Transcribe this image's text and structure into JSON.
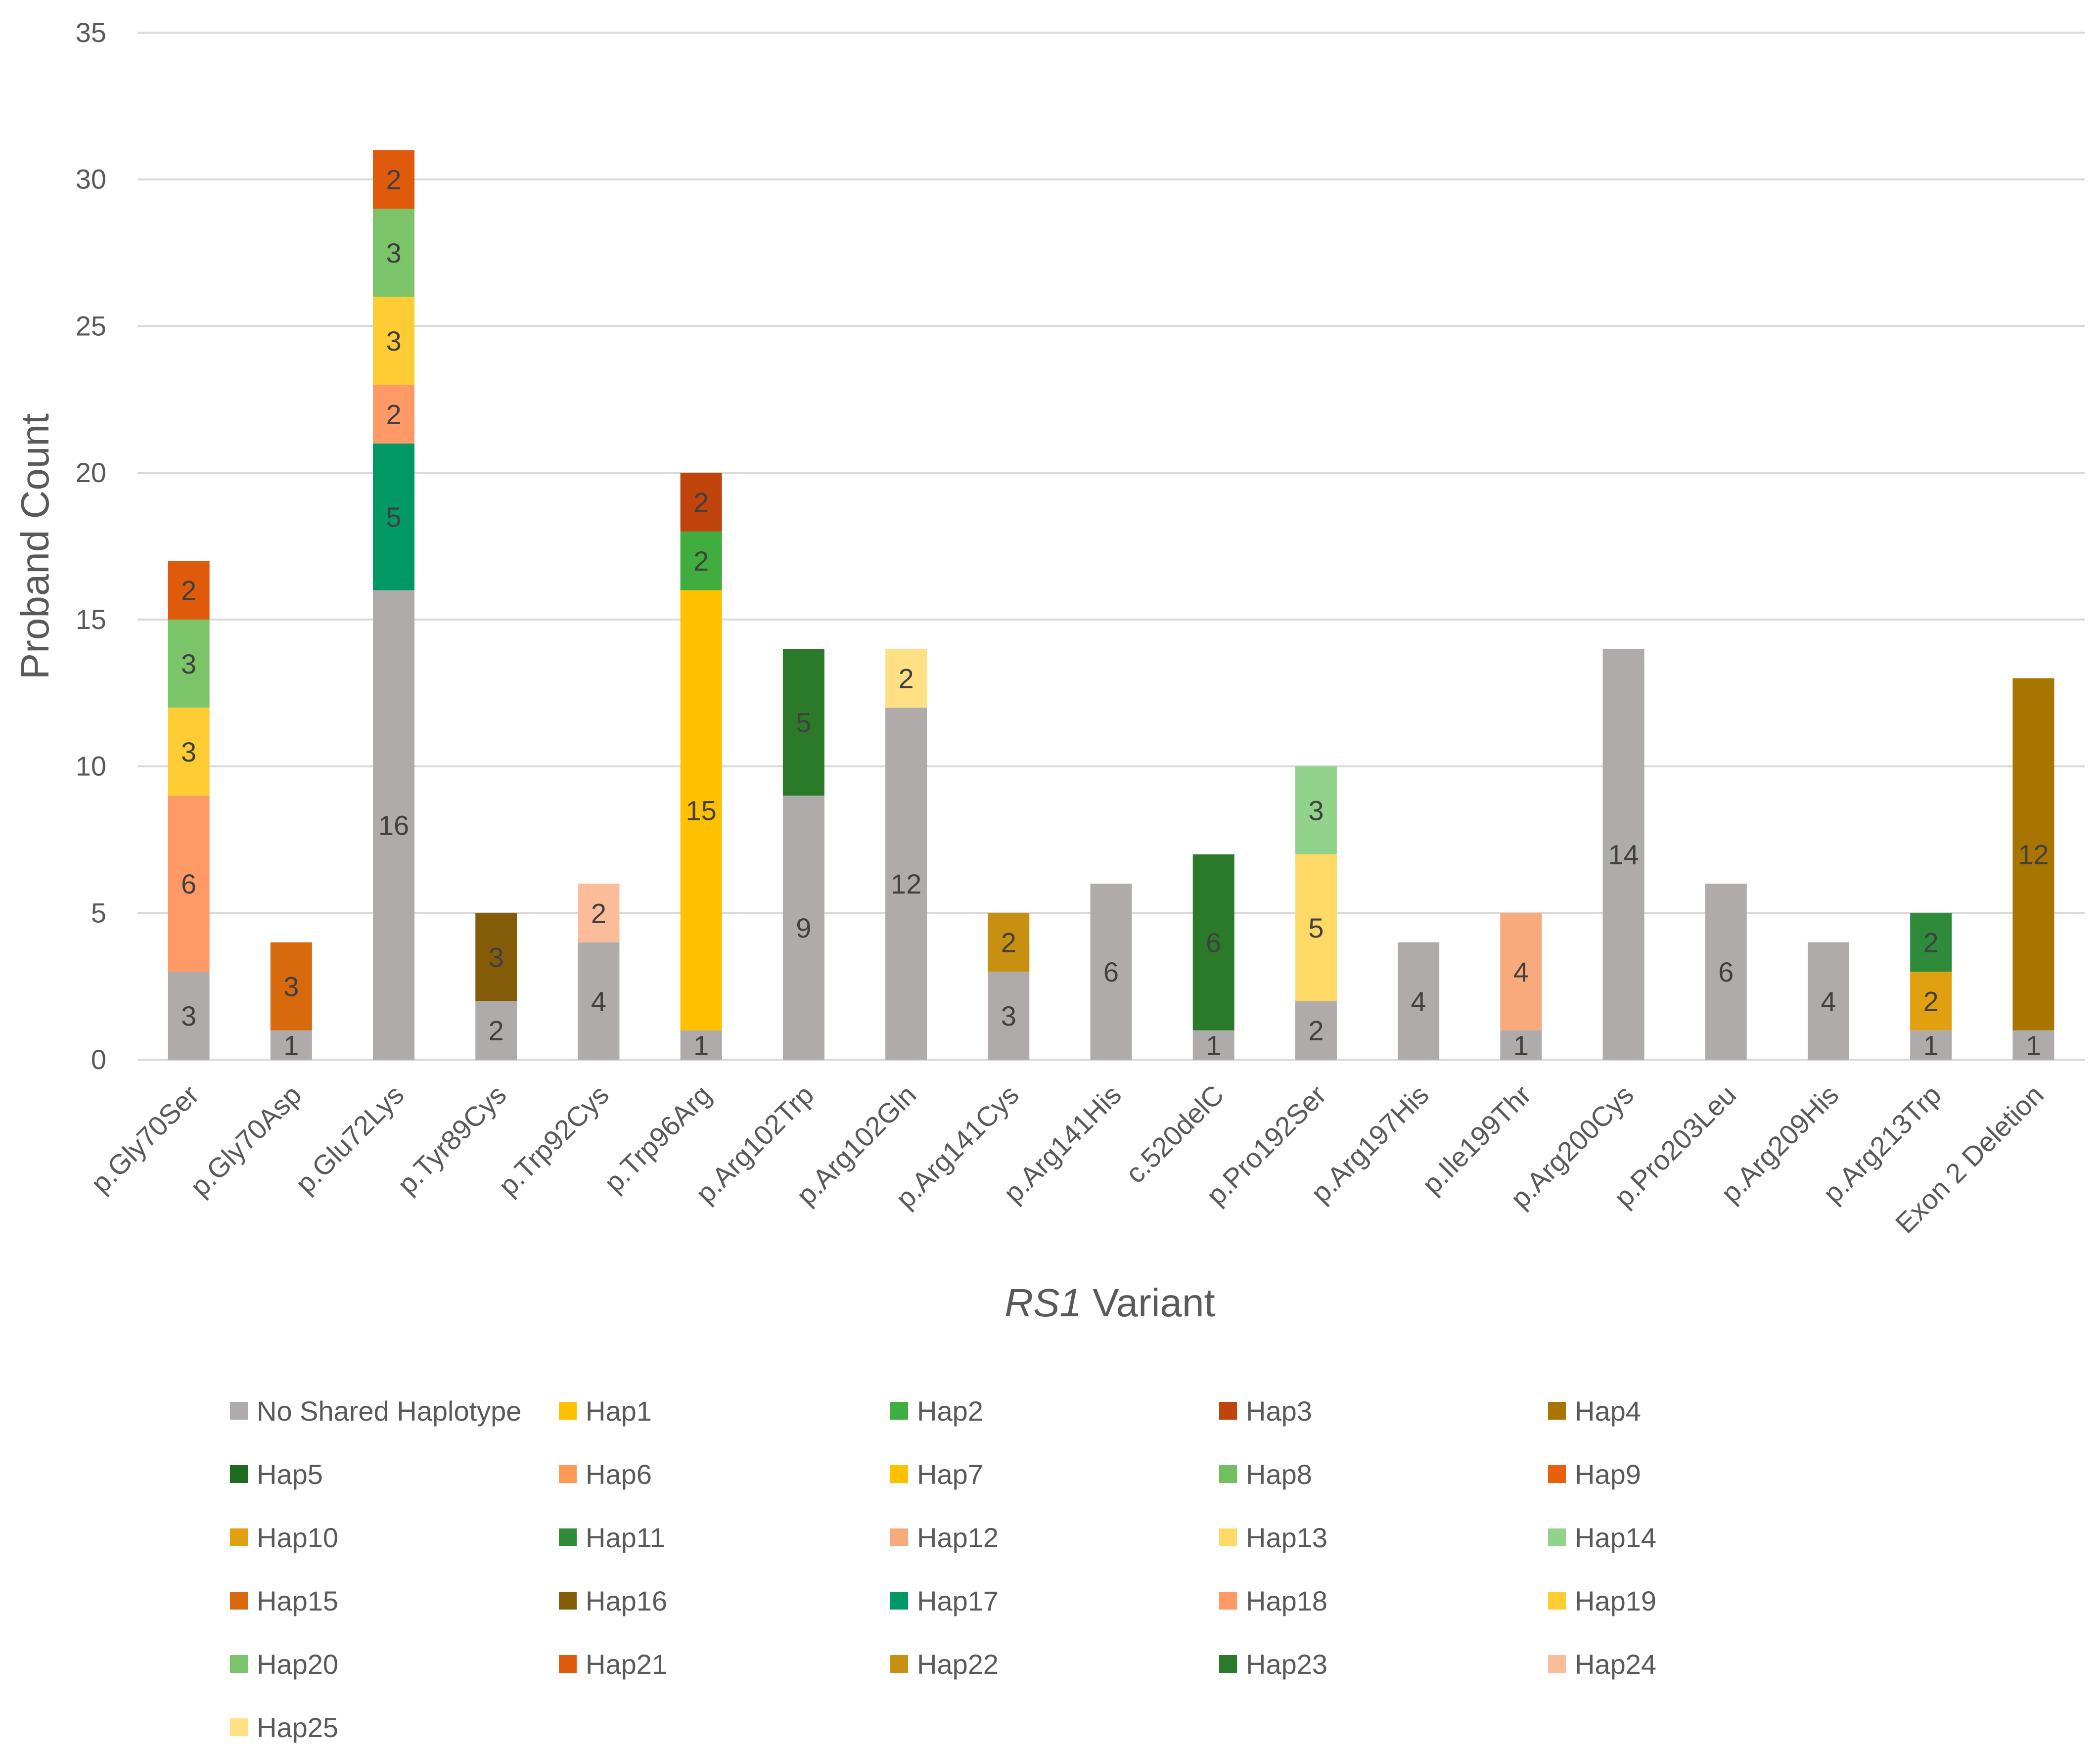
{
  "chart_data": {
    "type": "bar",
    "stacked": true,
    "ylabel": "Proband Count",
    "xlabel_italic": "RS1",
    "xlabel_rest": " Variant",
    "ylim": [
      0,
      35
    ],
    "yticks": [
      0,
      5,
      10,
      15,
      20,
      25,
      30,
      35
    ],
    "grid": true,
    "legend_position": "bottom",
    "categories": [
      "p.Gly70Ser",
      "p.Gly70Asp",
      "p.Glu72Lys",
      "p.Tyr89Cys",
      "p.Trp92Cys",
      "p.Trp96Arg",
      "p.Arg102Trp",
      "p.Arg102Gln",
      "p.Arg141Cys",
      "p.Arg141His",
      "c.520delC",
      "p.Pro192Ser",
      "p.Arg197His",
      "p.Ile199Thr",
      "p.Arg200Cys",
      "p.Pro203Leu",
      "p.Arg209His",
      "p.Arg213Trp",
      "Exon 2 Deletion"
    ],
    "series": [
      {
        "name": "No Shared Haplotype",
        "color": "#AFABAB",
        "values": [
          3,
          1,
          16,
          2,
          4,
          1,
          9,
          12,
          3,
          6,
          1,
          2,
          4,
          1,
          14,
          6,
          4,
          1,
          1
        ]
      },
      {
        "name": "Hap1",
        "color": "#FFC000",
        "values": [
          0,
          0,
          0,
          0,
          0,
          15,
          0,
          0,
          0,
          0,
          0,
          0,
          0,
          0,
          0,
          0,
          0,
          0,
          0
        ]
      },
      {
        "name": "Hap2",
        "color": "#3FAE3F",
        "values": [
          0,
          0,
          0,
          0,
          0,
          2,
          0,
          0,
          0,
          0,
          0,
          0,
          0,
          0,
          0,
          0,
          0,
          0,
          0
        ]
      },
      {
        "name": "Hap3",
        "color": "#C0440C",
        "values": [
          0,
          0,
          0,
          0,
          0,
          2,
          0,
          0,
          0,
          0,
          0,
          0,
          0,
          0,
          0,
          0,
          0,
          0,
          0
        ]
      },
      {
        "name": "Hap4",
        "color": "#A87600",
        "values": [
          0,
          0,
          0,
          0,
          0,
          0,
          0,
          0,
          0,
          0,
          0,
          0,
          0,
          0,
          0,
          0,
          0,
          0,
          12
        ]
      },
      {
        "name": "Hap5",
        "color": "#1E6B1E",
        "values": [
          0,
          0,
          0,
          0,
          0,
          0,
          0,
          0,
          0,
          0,
          0,
          0,
          0,
          0,
          0,
          0,
          0,
          0,
          0
        ]
      },
      {
        "name": "Hap6",
        "color": "#FF9955",
        "values": [
          0,
          0,
          0,
          0,
          0,
          0,
          0,
          0,
          0,
          0,
          0,
          0,
          0,
          0,
          0,
          0,
          0,
          0,
          0
        ]
      },
      {
        "name": "Hap7",
        "color": "#FFC000",
        "values": [
          0,
          0,
          0,
          0,
          0,
          0,
          0,
          0,
          0,
          0,
          0,
          0,
          0,
          0,
          0,
          0,
          0,
          0,
          0
        ]
      },
      {
        "name": "Hap8",
        "color": "#70C060",
        "values": [
          0,
          0,
          0,
          0,
          0,
          0,
          0,
          0,
          0,
          0,
          0,
          0,
          0,
          0,
          0,
          0,
          0,
          0,
          0
        ]
      },
      {
        "name": "Hap9",
        "color": "#E8600A",
        "values": [
          0,
          0,
          0,
          0,
          0,
          0,
          0,
          0,
          0,
          0,
          0,
          0,
          0,
          0,
          0,
          0,
          0,
          0,
          0
        ]
      },
      {
        "name": "Hap10",
        "color": "#E0A010",
        "values": [
          0,
          0,
          0,
          0,
          0,
          0,
          0,
          0,
          0,
          0,
          0,
          0,
          0,
          0,
          0,
          0,
          0,
          2,
          0
        ]
      },
      {
        "name": "Hap11",
        "color": "#2E8B3A",
        "values": [
          0,
          0,
          0,
          0,
          0,
          0,
          0,
          0,
          0,
          0,
          0,
          0,
          0,
          0,
          0,
          0,
          0,
          2,
          0
        ]
      },
      {
        "name": "Hap12",
        "color": "#F8AA7C",
        "values": [
          0,
          0,
          0,
          0,
          0,
          0,
          0,
          0,
          0,
          0,
          0,
          0,
          0,
          4,
          0,
          0,
          0,
          0,
          0
        ]
      },
      {
        "name": "Hap13",
        "color": "#FFD966",
        "values": [
          0,
          0,
          0,
          0,
          0,
          0,
          0,
          0,
          0,
          0,
          0,
          5,
          0,
          0,
          0,
          0,
          0,
          0,
          0
        ]
      },
      {
        "name": "Hap14",
        "color": "#92D38C",
        "values": [
          0,
          0,
          0,
          0,
          0,
          0,
          0,
          0,
          0,
          0,
          0,
          3,
          0,
          0,
          0,
          0,
          0,
          0,
          0
        ]
      },
      {
        "name": "Hap15",
        "color": "#D86A0E",
        "values": [
          0,
          3,
          0,
          0,
          0,
          0,
          0,
          0,
          0,
          0,
          0,
          0,
          0,
          0,
          0,
          0,
          0,
          0,
          0
        ]
      },
      {
        "name": "Hap16",
        "color": "#845C08",
        "values": [
          0,
          0,
          0,
          3,
          0,
          0,
          0,
          0,
          0,
          0,
          0,
          0,
          0,
          0,
          0,
          0,
          0,
          0,
          0
        ]
      },
      {
        "name": "Hap17",
        "color": "#009966",
        "values": [
          0,
          0,
          5,
          0,
          0,
          0,
          0,
          0,
          0,
          0,
          0,
          0,
          0,
          0,
          0,
          0,
          0,
          0,
          0
        ]
      },
      {
        "name": "Hap18",
        "color": "#FF9966",
        "values": [
          6,
          0,
          2,
          0,
          0,
          0,
          0,
          0,
          0,
          0,
          0,
          0,
          0,
          0,
          0,
          0,
          0,
          0,
          0
        ]
      },
      {
        "name": "Hap19",
        "color": "#FFCC33",
        "values": [
          3,
          0,
          3,
          0,
          0,
          0,
          0,
          0,
          0,
          0,
          0,
          0,
          0,
          0,
          0,
          0,
          0,
          0,
          0
        ]
      },
      {
        "name": "Hap20",
        "color": "#7CC46A",
        "values": [
          3,
          0,
          3,
          0,
          0,
          0,
          0,
          0,
          0,
          0,
          0,
          0,
          0,
          0,
          0,
          0,
          0,
          0,
          0
        ]
      },
      {
        "name": "Hap21",
        "color": "#E05A0C",
        "values": [
          2,
          0,
          2,
          0,
          0,
          0,
          0,
          0,
          0,
          0,
          0,
          0,
          0,
          0,
          0,
          0,
          0,
          0,
          0
        ]
      },
      {
        "name": "Hap22",
        "color": "#C89010",
        "values": [
          0,
          0,
          0,
          0,
          0,
          0,
          0,
          0,
          2,
          0,
          0,
          0,
          0,
          0,
          0,
          0,
          0,
          0,
          0
        ]
      },
      {
        "name": "Hap23",
        "color": "#2A7A2A",
        "values": [
          0,
          0,
          0,
          0,
          0,
          0,
          5,
          0,
          0,
          0,
          6,
          0,
          0,
          0,
          0,
          0,
          0,
          0,
          0
        ]
      },
      {
        "name": "Hap24",
        "color": "#FBBC9A",
        "values": [
          0,
          0,
          0,
          0,
          2,
          0,
          0,
          0,
          0,
          0,
          0,
          0,
          0,
          0,
          0,
          0,
          0,
          0,
          0
        ]
      },
      {
        "name": "Hap25",
        "color": "#FFE083",
        "values": [
          0,
          0,
          0,
          0,
          0,
          0,
          0,
          2,
          0,
          0,
          0,
          0,
          0,
          0,
          0,
          0,
          0,
          0,
          0
        ]
      }
    ]
  }
}
